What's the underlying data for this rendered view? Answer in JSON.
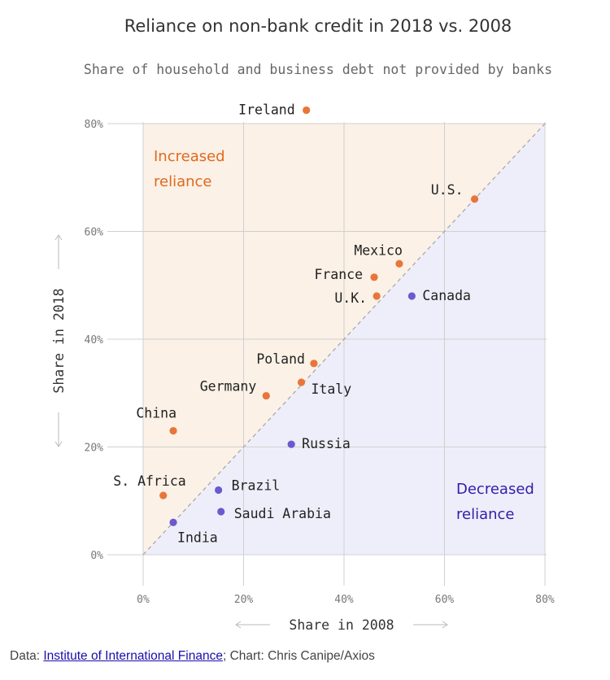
{
  "title": "Reliance on non-bank credit in 2018 vs. 2008",
  "subtitle": "Share of household and business debt not provided by banks",
  "credit": {
    "prefix": "Data: ",
    "source_link": "Institute of International Finance",
    "suffix": "; Chart: Chris Canipe/Axios"
  },
  "colors": {
    "increased": "#e8763a",
    "decreased": "#6a5acd",
    "increased_region": "#fbf1e6",
    "decreased_region": "#eeeefb",
    "increased_label": "#e0691e",
    "decreased_label": "#2f1ea8",
    "grid": "#d0d0d0"
  },
  "chart_data": {
    "type": "scatter",
    "xlabel": "Share in 2008",
    "ylabel": "Share in 2018",
    "xlim": [
      0,
      80
    ],
    "ylim": [
      0,
      80
    ],
    "x_ticks": [
      "0%",
      "20%",
      "40%",
      "60%",
      "80%"
    ],
    "y_ticks": [
      "0%",
      "20%",
      "40%",
      "60%",
      "80%"
    ],
    "grid": true,
    "diagonal": "dashed 45-degree line",
    "regions": {
      "above": "Increased reliance",
      "below": "Decreased reliance"
    },
    "points": [
      {
        "label": "Ireland",
        "x": 32.5,
        "y": 82.5,
        "group": "increased"
      },
      {
        "label": "U.S.",
        "x": 66,
        "y": 66,
        "group": "increased"
      },
      {
        "label": "Mexico",
        "x": 51,
        "y": 54,
        "group": "increased"
      },
      {
        "label": "France",
        "x": 46,
        "y": 51.5,
        "group": "increased"
      },
      {
        "label": "U.K.",
        "x": 46.5,
        "y": 48,
        "group": "increased"
      },
      {
        "label": "Canada",
        "x": 53.5,
        "y": 48,
        "group": "decreased"
      },
      {
        "label": "Poland",
        "x": 34,
        "y": 35.5,
        "group": "increased"
      },
      {
        "label": "Italy",
        "x": 31.5,
        "y": 32,
        "group": "increased"
      },
      {
        "label": "Germany",
        "x": 24.5,
        "y": 29.5,
        "group": "increased"
      },
      {
        "label": "China",
        "x": 6,
        "y": 23,
        "group": "increased"
      },
      {
        "label": "Russia",
        "x": 29.5,
        "y": 20.5,
        "group": "decreased"
      },
      {
        "label": "S. Africa",
        "x": 4,
        "y": 11,
        "group": "increased"
      },
      {
        "label": "Brazil",
        "x": 15,
        "y": 12,
        "group": "decreased"
      },
      {
        "label": "Saudi Arabia",
        "x": 15.5,
        "y": 8,
        "group": "decreased"
      },
      {
        "label": "India",
        "x": 6,
        "y": 6,
        "group": "decreased"
      }
    ]
  }
}
